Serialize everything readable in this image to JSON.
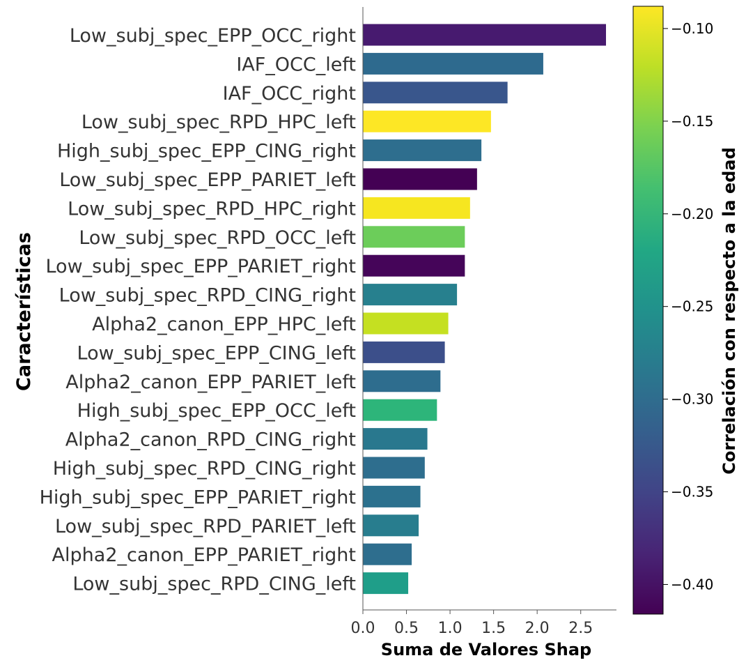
{
  "chart_data": {
    "type": "bar",
    "orientation": "horizontal",
    "xlabel": "Suma de Valores Shap",
    "ylabel": "Características",
    "xlim": [
      0,
      2.93
    ],
    "xticks": [
      "0.0",
      "0.5",
      "1.0",
      "1.5",
      "2.0",
      "2.5"
    ],
    "grid": false,
    "colorbar": {
      "label": "Correlación con respecto a la edad",
      "range": [
        -0.416,
        -0.088
      ],
      "ticks": [
        "−0.10",
        "−0.15",
        "−0.20",
        "−0.25",
        "−0.30",
        "−0.35",
        "−0.40"
      ],
      "tick_values": [
        -0.1,
        -0.15,
        -0.2,
        -0.25,
        -0.3,
        -0.35,
        -0.4
      ],
      "colormap": "viridis"
    },
    "categories": [
      "Low_subj_spec_EPP_OCC_right",
      "IAF_OCC_left",
      "IAF_OCC_right",
      "Low_subj_spec_RPD_HPC_left",
      "High_subj_spec_EPP_CING_right",
      "Low_subj_spec_EPP_PARIET_left",
      "Low_subj_spec_RPD_HPC_right",
      "Low_subj_spec_RPD_OCC_left",
      "Low_subj_spec_EPP_PARIET_right",
      "Low_subj_spec_RPD_CING_right",
      "Alpha2_canon_EPP_HPC_left",
      "Low_subj_spec_EPP_CING_left",
      "Alpha2_canon_EPP_PARIET_left",
      "High_subj_spec_EPP_OCC_left",
      "Alpha2_canon_RPD_CING_right",
      "High_subj_spec_RPD_CING_right",
      "High_subj_spec_EPP_PARIET_right",
      "Low_subj_spec_RPD_PARIET_left",
      "Alpha2_canon_EPP_PARIET_right",
      "Low_subj_spec_RPD_CING_left"
    ],
    "values": [
      2.79,
      2.07,
      1.66,
      1.47,
      1.36,
      1.31,
      1.23,
      1.17,
      1.17,
      1.08,
      0.98,
      0.94,
      0.89,
      0.85,
      0.74,
      0.71,
      0.66,
      0.64,
      0.56,
      0.52
    ],
    "correlation": [
      -0.39,
      -0.3,
      -0.35,
      -0.09,
      -0.3,
      -0.415,
      -0.09,
      -0.16,
      -0.41,
      -0.28,
      -0.11,
      -0.36,
      -0.31,
      -0.21,
      -0.29,
      -0.31,
      -0.31,
      -0.28,
      -0.31,
      -0.25
    ],
    "colors": [
      "#471a6f",
      "#2e6a8e",
      "#39568c",
      "#fde725",
      "#2e6e8e",
      "#440154",
      "#f6e620",
      "#6ccd5a",
      "#450559",
      "#27808e",
      "#c5e021",
      "#3c4f8a",
      "#2e6d8e",
      "#2db57a",
      "#29788e",
      "#2e6e8e",
      "#2c718e",
      "#287d8e",
      "#2e6e8e",
      "#1f9e89"
    ]
  }
}
